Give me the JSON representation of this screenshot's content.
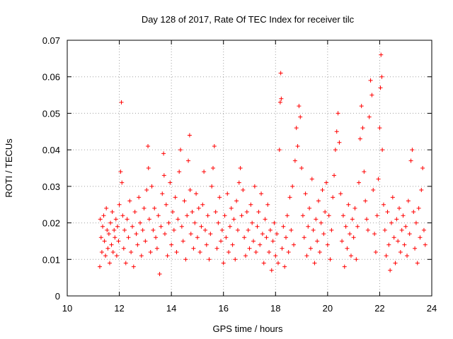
{
  "chart_data": {
    "type": "scatter",
    "title": "Day 128 of 2017, Rate Of TEC Index for receiver tilc",
    "xlabel": "GPS time / hours",
    "ylabel": "ROTI / TECUs",
    "xlim": [
      10,
      24
    ],
    "ylim": [
      0,
      0.07
    ],
    "x_ticks": [
      10,
      12,
      14,
      16,
      18,
      20,
      22,
      24
    ],
    "x_tick_labels": [
      "10",
      "12",
      "14",
      "16",
      "18",
      "20",
      "22",
      "24"
    ],
    "y_ticks": [
      0,
      0.01,
      0.02,
      0.03,
      0.04,
      0.05,
      0.06,
      0.07
    ],
    "y_tick_labels": [
      "0",
      "0.01",
      "0.02",
      "0.03",
      "0.04",
      "0.05",
      "0.06",
      "0.07"
    ],
    "grid": true,
    "legend": "none",
    "marker": "plus",
    "color": "#ff0000",
    "series": [
      {
        "values": [
          [
            11.25,
            0.008
          ],
          [
            11.27,
            0.021
          ],
          [
            11.3,
            0.016
          ],
          [
            11.33,
            0.012
          ],
          [
            11.36,
            0.019
          ],
          [
            11.4,
            0.022
          ],
          [
            11.43,
            0.015
          ],
          [
            11.47,
            0.011
          ],
          [
            11.5,
            0.024
          ],
          [
            11.53,
            0.018
          ],
          [
            11.56,
            0.013
          ],
          [
            11.6,
            0.017
          ],
          [
            11.63,
            0.009
          ],
          [
            11.66,
            0.02
          ],
          [
            11.7,
            0.014
          ],
          [
            11.73,
            0.023
          ],
          [
            11.76,
            0.012
          ],
          [
            11.8,
            0.018
          ],
          [
            11.83,
            0.016
          ],
          [
            11.87,
            0.021
          ],
          [
            11.9,
            0.011
          ],
          [
            11.93,
            0.019
          ],
          [
            11.97,
            0.015
          ],
          [
            12.0,
            0.025
          ],
          [
            12.05,
            0.034
          ],
          [
            12.08,
            0.053
          ],
          [
            12.1,
            0.031
          ],
          [
            12.13,
            0.022
          ],
          [
            12.17,
            0.013
          ],
          [
            12.2,
            0.018
          ],
          [
            12.25,
            0.009
          ],
          [
            12.3,
            0.021
          ],
          [
            12.35,
            0.016
          ],
          [
            12.4,
            0.026
          ],
          [
            12.45,
            0.012
          ],
          [
            12.5,
            0.019
          ],
          [
            12.55,
            0.008
          ],
          [
            12.6,
            0.023
          ],
          [
            12.65,
            0.017
          ],
          [
            12.7,
            0.014
          ],
          [
            12.75,
            0.027
          ],
          [
            12.8,
            0.02
          ],
          [
            12.85,
            0.011
          ],
          [
            12.9,
            0.018
          ],
          [
            12.95,
            0.024
          ],
          [
            13.0,
            0.015
          ],
          [
            13.05,
            0.029
          ],
          [
            13.1,
            0.041
          ],
          [
            13.12,
            0.035
          ],
          [
            13.15,
            0.021
          ],
          [
            13.2,
            0.012
          ],
          [
            13.25,
            0.03
          ],
          [
            13.3,
            0.018
          ],
          [
            13.35,
            0.024
          ],
          [
            13.4,
            0.016
          ],
          [
            13.45,
            0.013
          ],
          [
            13.5,
            0.022
          ],
          [
            13.55,
            0.006
          ],
          [
            13.6,
            0.019
          ],
          [
            13.65,
            0.028
          ],
          [
            13.7,
            0.039
          ],
          [
            13.72,
            0.033
          ],
          [
            13.75,
            0.017
          ],
          [
            13.8,
            0.025
          ],
          [
            13.85,
            0.011
          ],
          [
            13.9,
            0.02
          ],
          [
            13.95,
            0.031
          ],
          [
            14.0,
            0.014
          ],
          [
            14.05,
            0.023
          ],
          [
            14.1,
            0.018
          ],
          [
            14.15,
            0.027
          ],
          [
            14.2,
            0.012
          ],
          [
            14.25,
            0.021
          ],
          [
            14.3,
            0.034
          ],
          [
            14.35,
            0.04
          ],
          [
            14.4,
            0.019
          ],
          [
            14.45,
            0.015
          ],
          [
            14.5,
            0.026
          ],
          [
            14.55,
            0.01
          ],
          [
            14.6,
            0.022
          ],
          [
            14.65,
            0.037
          ],
          [
            14.7,
            0.044
          ],
          [
            14.72,
            0.029
          ],
          [
            14.75,
            0.017
          ],
          [
            14.8,
            0.023
          ],
          [
            14.85,
            0.013
          ],
          [
            14.9,
            0.02
          ],
          [
            14.95,
            0.028
          ],
          [
            15.0,
            0.016
          ],
          [
            15.05,
            0.024
          ],
          [
            15.1,
            0.012
          ],
          [
            15.15,
            0.019
          ],
          [
            15.2,
            0.025
          ],
          [
            15.25,
            0.034
          ],
          [
            15.3,
            0.018
          ],
          [
            15.35,
            0.014
          ],
          [
            15.4,
            0.022
          ],
          [
            15.45,
            0.01
          ],
          [
            15.5,
            0.017
          ],
          [
            15.55,
            0.03
          ],
          [
            15.6,
            0.035
          ],
          [
            15.65,
            0.041
          ],
          [
            15.7,
            0.023
          ],
          [
            15.75,
            0.013
          ],
          [
            15.8,
            0.02
          ],
          [
            15.85,
            0.027
          ],
          [
            15.9,
            0.015
          ],
          [
            15.95,
            0.018
          ],
          [
            16.0,
            0.009
          ],
          [
            16.05,
            0.022
          ],
          [
            16.1,
            0.016
          ],
          [
            16.15,
            0.028
          ],
          [
            16.2,
            0.012
          ],
          [
            16.25,
            0.019
          ],
          [
            16.3,
            0.024
          ],
          [
            16.35,
            0.014
          ],
          [
            16.4,
            0.021
          ],
          [
            16.45,
            0.01
          ],
          [
            16.5,
            0.026
          ],
          [
            16.55,
            0.018
          ],
          [
            16.6,
            0.031
          ],
          [
            16.65,
            0.035
          ],
          [
            16.7,
            0.022
          ],
          [
            16.75,
            0.029
          ],
          [
            16.8,
            0.016
          ],
          [
            16.85,
            0.011
          ],
          [
            16.9,
            0.023
          ],
          [
            16.95,
            0.018
          ],
          [
            17.0,
            0.013
          ],
          [
            17.05,
            0.025
          ],
          [
            17.1,
            0.02
          ],
          [
            17.15,
            0.015
          ],
          [
            17.2,
            0.03
          ],
          [
            17.25,
            0.012
          ],
          [
            17.3,
            0.019
          ],
          [
            17.35,
            0.023
          ],
          [
            17.4,
            0.014
          ],
          [
            17.45,
            0.028
          ],
          [
            17.5,
            0.017
          ],
          [
            17.55,
            0.009
          ],
          [
            17.6,
            0.021
          ],
          [
            17.65,
            0.016
          ],
          [
            17.7,
            0.025
          ],
          [
            17.75,
            0.012
          ],
          [
            17.8,
            0.018
          ],
          [
            17.85,
            0.007
          ],
          [
            17.9,
            0.015
          ],
          [
            17.95,
            0.02
          ],
          [
            18.0,
            0.011
          ],
          [
            18.05,
            0.017
          ],
          [
            18.1,
            0.009
          ],
          [
            18.15,
            0.04
          ],
          [
            18.18,
            0.053
          ],
          [
            18.2,
            0.061
          ],
          [
            18.22,
            0.054
          ],
          [
            18.25,
            0.013
          ],
          [
            18.3,
            0.019
          ],
          [
            18.35,
            0.008
          ],
          [
            18.4,
            0.016
          ],
          [
            18.45,
            0.022
          ],
          [
            18.5,
            0.012
          ],
          [
            18.55,
            0.027
          ],
          [
            18.6,
            0.018
          ],
          [
            18.65,
            0.03
          ],
          [
            18.7,
            0.014
          ],
          [
            18.75,
            0.037
          ],
          [
            18.8,
            0.046
          ],
          [
            18.85,
            0.041
          ],
          [
            18.9,
            0.052
          ],
          [
            18.95,
            0.049
          ],
          [
            19.0,
            0.035
          ],
          [
            19.05,
            0.022
          ],
          [
            19.1,
            0.016
          ],
          [
            19.15,
            0.028
          ],
          [
            19.2,
            0.011
          ],
          [
            19.25,
            0.019
          ],
          [
            19.3,
            0.024
          ],
          [
            19.35,
            0.013
          ],
          [
            19.4,
            0.032
          ],
          [
            19.45,
            0.018
          ],
          [
            19.5,
            0.009
          ],
          [
            19.55,
            0.021
          ],
          [
            19.6,
            0.015
          ],
          [
            19.65,
            0.026
          ],
          [
            19.7,
            0.012
          ],
          [
            19.75,
            0.02
          ],
          [
            19.8,
            0.029
          ],
          [
            19.85,
            0.017
          ],
          [
            19.9,
            0.023
          ],
          [
            19.95,
            0.031
          ],
          [
            20.0,
            0.014
          ],
          [
            20.05,
            0.022
          ],
          [
            20.1,
            0.01
          ],
          [
            20.15,
            0.018
          ],
          [
            20.2,
            0.027
          ],
          [
            20.25,
            0.033
          ],
          [
            20.3,
            0.04
          ],
          [
            20.35,
            0.045
          ],
          [
            20.4,
            0.05
          ],
          [
            20.45,
            0.042
          ],
          [
            20.5,
            0.028
          ],
          [
            20.55,
            0.015
          ],
          [
            20.6,
            0.022
          ],
          [
            20.65,
            0.008
          ],
          [
            20.7,
            0.019
          ],
          [
            20.75,
            0.013
          ],
          [
            20.8,
            0.025
          ],
          [
            20.85,
            0.017
          ],
          [
            20.9,
            0.011
          ],
          [
            20.95,
            0.021
          ],
          [
            21.0,
            0.016
          ],
          [
            21.05,
            0.024
          ],
          [
            21.1,
            0.01
          ],
          [
            21.15,
            0.019
          ],
          [
            21.2,
            0.031
          ],
          [
            21.25,
            0.043
          ],
          [
            21.3,
            0.052
          ],
          [
            21.35,
            0.046
          ],
          [
            21.4,
            0.034
          ],
          [
            21.45,
            0.026
          ],
          [
            21.5,
            0.021
          ],
          [
            21.55,
            0.018
          ],
          [
            21.6,
            0.049
          ],
          [
            21.65,
            0.059
          ],
          [
            21.7,
            0.055
          ],
          [
            21.75,
            0.029
          ],
          [
            21.8,
            0.017
          ],
          [
            21.85,
            0.012
          ],
          [
            21.9,
            0.022
          ],
          [
            21.95,
            0.032
          ],
          [
            22.0,
            0.046
          ],
          [
            22.03,
            0.057
          ],
          [
            22.05,
            0.066
          ],
          [
            22.08,
            0.06
          ],
          [
            22.1,
            0.04
          ],
          [
            22.15,
            0.025
          ],
          [
            22.2,
            0.018
          ],
          [
            22.25,
            0.011
          ],
          [
            22.3,
            0.023
          ],
          [
            22.35,
            0.014
          ],
          [
            22.4,
            0.007
          ],
          [
            22.45,
            0.02
          ],
          [
            22.5,
            0.027
          ],
          [
            22.55,
            0.016
          ],
          [
            22.6,
            0.009
          ],
          [
            22.65,
            0.021
          ],
          [
            22.7,
            0.015
          ],
          [
            22.75,
            0.024
          ],
          [
            22.8,
            0.012
          ],
          [
            22.85,
            0.018
          ],
          [
            22.9,
            0.022
          ],
          [
            22.95,
            0.014
          ],
          [
            23.0,
            0.019
          ],
          [
            23.05,
            0.011
          ],
          [
            23.1,
            0.026
          ],
          [
            23.15,
            0.017
          ],
          [
            23.2,
            0.037
          ],
          [
            23.25,
            0.04
          ],
          [
            23.3,
            0.023
          ],
          [
            23.35,
            0.013
          ],
          [
            23.4,
            0.02
          ],
          [
            23.45,
            0.009
          ],
          [
            23.5,
            0.024
          ],
          [
            23.55,
            0.016
          ],
          [
            23.6,
            0.029
          ],
          [
            23.65,
            0.035
          ],
          [
            23.7,
            0.018
          ],
          [
            23.75,
            0.014
          ]
        ]
      }
    ]
  }
}
